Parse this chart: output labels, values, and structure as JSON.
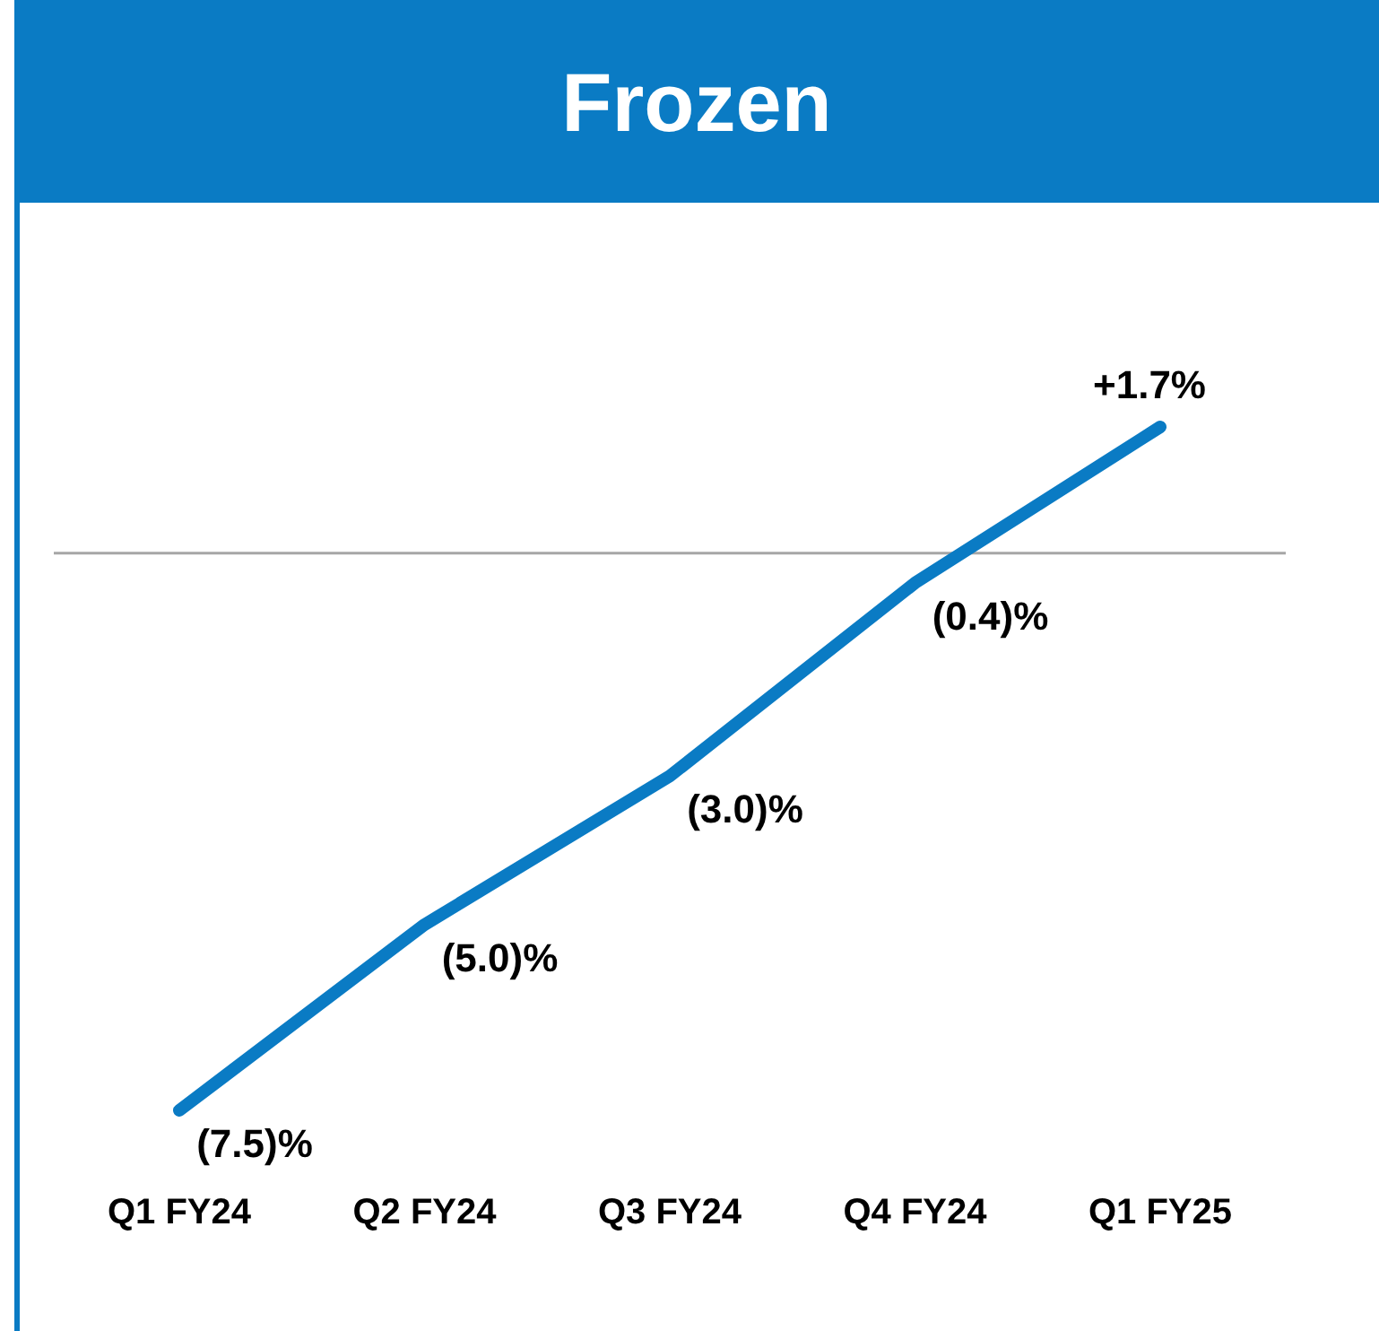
{
  "chart_data": {
    "type": "line",
    "title": "Frozen",
    "categories": [
      "Q1 FY24",
      "Q2 FY24",
      "Q3 FY24",
      "Q4 FY24",
      "Q1 FY25"
    ],
    "series": [
      {
        "color": "#0a7bc4",
        "values": [
          -7.5,
          -5.0,
          -3.0,
          -0.4,
          1.7
        ],
        "value_labels": [
          "(7.5)%",
          "(5.0)%",
          "(3.0)%",
          "(0.4)%",
          "+1.7%"
        ]
      }
    ],
    "tick_labels": "x",
    "marker": "none",
    "line_style": "solid",
    "ref_lines": [
      {
        "axis": "y",
        "value": 0,
        "color": "#a6a6a6"
      }
    ]
  }
}
